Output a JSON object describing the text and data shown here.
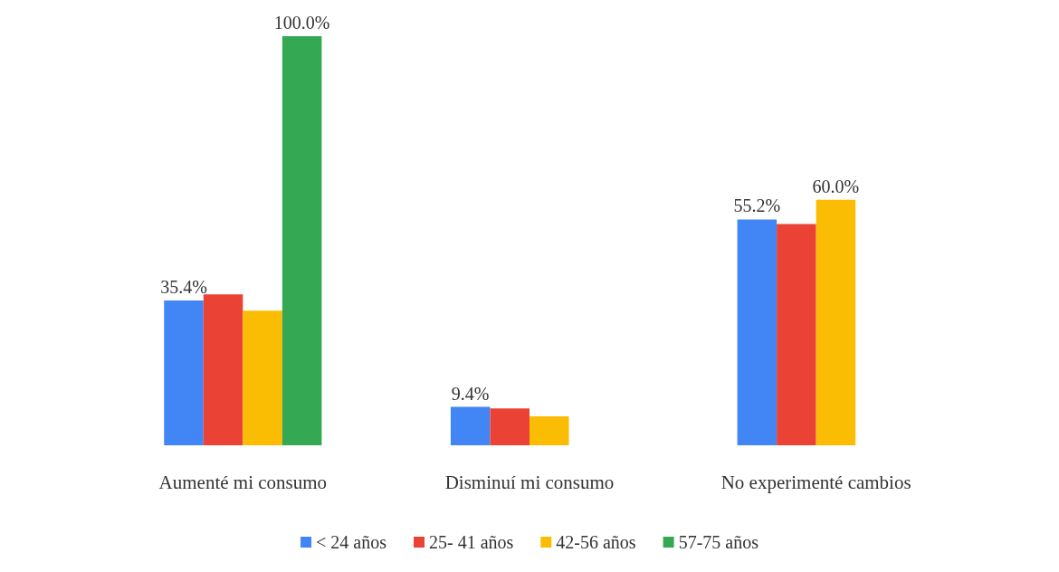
{
  "chart_data": {
    "type": "bar",
    "categories": [
      "Aumenté mi consumo",
      "Disminuí mi consumo",
      "No experimenté cambios"
    ],
    "series": [
      {
        "name": "< 24 años",
        "color": "#4285f4",
        "values": [
          35.4,
          9.4,
          55.2
        ],
        "value_labels": [
          "35.4%",
          "9.4%",
          "55.2%"
        ]
      },
      {
        "name": "25- 41 años",
        "color": "#ea4335",
        "values": [
          36.9,
          9.0,
          54.1
        ],
        "value_labels": [
          null,
          null,
          null
        ]
      },
      {
        "name": "42-56 años",
        "color": "#fbbc04",
        "values": [
          32.9,
          7.1,
          60.0
        ],
        "value_labels": [
          null,
          null,
          "60.0%"
        ]
      },
      {
        "name": "57-75 años",
        "color": "#34a853",
        "values": [
          100.0,
          0,
          0
        ],
        "value_labels": [
          "100.0%",
          null,
          null
        ]
      }
    ],
    "legend": "bottom"
  }
}
